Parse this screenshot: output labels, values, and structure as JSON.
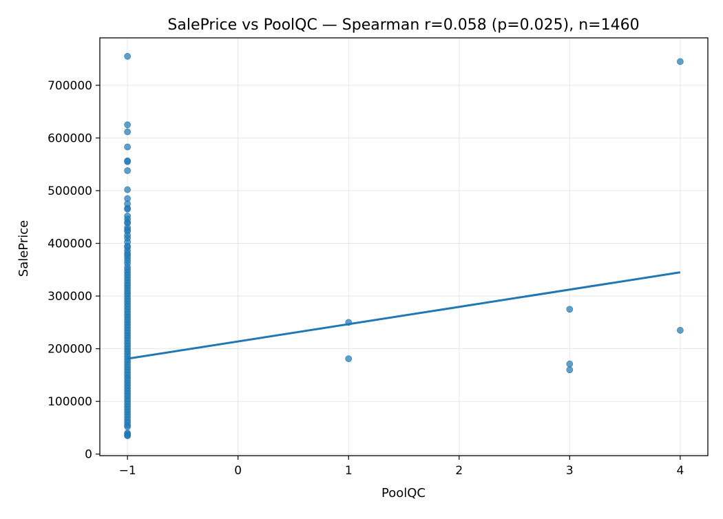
{
  "chart_data": {
    "type": "scatter",
    "title": "SalePrice vs PoolQC — Spearman r=0.058 (p=0.025), n=1460",
    "xlabel": "PoolQC",
    "ylabel": "SalePrice",
    "xlim": [
      -1.25,
      4.25
    ],
    "ylim": [
      -3000,
      790000
    ],
    "x_ticks": [
      -1,
      0,
      1,
      2,
      3,
      4
    ],
    "x_tick_labels": [
      "−1",
      "0",
      "1",
      "2",
      "3",
      "4"
    ],
    "y_ticks": [
      0,
      100000,
      200000,
      300000,
      400000,
      500000,
      600000,
      700000
    ],
    "y_tick_labels": [
      "0",
      "100000",
      "200000",
      "300000",
      "400000",
      "500000",
      "600000",
      "700000"
    ],
    "grid": true,
    "point_color": "#1f77b4",
    "line_color": "#1f77b4",
    "series": [
      {
        "type": "scatter",
        "points": [
          {
            "x": -1,
            "y": 755000
          },
          {
            "x": -1,
            "y": 625000
          },
          {
            "x": -1,
            "y": 611657
          },
          {
            "x": -1,
            "y": 582933
          },
          {
            "x": -1,
            "y": 556581
          },
          {
            "x": -1,
            "y": 555000
          },
          {
            "x": -1,
            "y": 538000
          },
          {
            "x": -1,
            "y": 501837
          },
          {
            "x": -1,
            "y": 485000
          },
          {
            "x": -1,
            "y": 475000
          },
          {
            "x": -1,
            "y": 466500
          },
          {
            "x": -1,
            "y": 465000
          },
          {
            "x": -1,
            "y": 451950
          },
          {
            "x": -1,
            "y": 446261
          },
          {
            "x": -1,
            "y": 440000
          },
          {
            "x": -1,
            "y": 438780
          },
          {
            "x": -1,
            "y": 430000
          },
          {
            "x": -1,
            "y": 426000
          },
          {
            "x": -1,
            "y": 423000
          },
          {
            "x": -1,
            "y": 415298
          },
          {
            "x": -1,
            "y": 410000
          },
          {
            "x": -1,
            "y": 402861
          },
          {
            "x": -1,
            "y": 395000
          },
          {
            "x": -1,
            "y": 392500
          },
          {
            "x": -1,
            "y": 386250
          },
          {
            "x": -1,
            "y": 381000
          },
          {
            "x": -1,
            "y": 377500
          },
          {
            "x": -1,
            "y": 372500
          },
          {
            "x": -1,
            "y": 367294
          },
          {
            "x": -1,
            "y": 361919
          },
          {
            "x": -1,
            "y": 355000
          },
          {
            "x": -1,
            "y": 350000
          },
          {
            "x": -1,
            "y": 345000
          },
          {
            "x": -1,
            "y": 340000
          },
          {
            "x": -1,
            "y": 335000
          },
          {
            "x": -1,
            "y": 330000
          },
          {
            "x": -1,
            "y": 325000
          },
          {
            "x": -1,
            "y": 320000
          },
          {
            "x": -1,
            "y": 315000
          },
          {
            "x": -1,
            "y": 310000
          },
          {
            "x": -1,
            "y": 305000
          },
          {
            "x": -1,
            "y": 300000
          },
          {
            "x": -1,
            "y": 295000
          },
          {
            "x": -1,
            "y": 290000
          },
          {
            "x": -1,
            "y": 285000
          },
          {
            "x": -1,
            "y": 280000
          },
          {
            "x": -1,
            "y": 275000
          },
          {
            "x": -1,
            "y": 270000
          },
          {
            "x": -1,
            "y": 265000
          },
          {
            "x": -1,
            "y": 260000
          },
          {
            "x": -1,
            "y": 255000
          },
          {
            "x": -1,
            "y": 250000
          },
          {
            "x": -1,
            "y": 245000
          },
          {
            "x": -1,
            "y": 240000
          },
          {
            "x": -1,
            "y": 235000
          },
          {
            "x": -1,
            "y": 230000
          },
          {
            "x": -1,
            "y": 225000
          },
          {
            "x": -1,
            "y": 220000
          },
          {
            "x": -1,
            "y": 215000
          },
          {
            "x": -1,
            "y": 210000
          },
          {
            "x": -1,
            "y": 205000
          },
          {
            "x": -1,
            "y": 200000
          },
          {
            "x": -1,
            "y": 195000
          },
          {
            "x": -1,
            "y": 190000
          },
          {
            "x": -1,
            "y": 185000
          },
          {
            "x": -1,
            "y": 180000
          },
          {
            "x": -1,
            "y": 175000
          },
          {
            "x": -1,
            "y": 170000
          },
          {
            "x": -1,
            "y": 165000
          },
          {
            "x": -1,
            "y": 160000
          },
          {
            "x": -1,
            "y": 155000
          },
          {
            "x": -1,
            "y": 150000
          },
          {
            "x": -1,
            "y": 145000
          },
          {
            "x": -1,
            "y": 140000
          },
          {
            "x": -1,
            "y": 135000
          },
          {
            "x": -1,
            "y": 130000
          },
          {
            "x": -1,
            "y": 125000
          },
          {
            "x": -1,
            "y": 120000
          },
          {
            "x": -1,
            "y": 115000
          },
          {
            "x": -1,
            "y": 110000
          },
          {
            "x": -1,
            "y": 105000
          },
          {
            "x": -1,
            "y": 100000
          },
          {
            "x": -1,
            "y": 95000
          },
          {
            "x": -1,
            "y": 90000
          },
          {
            "x": -1,
            "y": 85000
          },
          {
            "x": -1,
            "y": 80000
          },
          {
            "x": -1,
            "y": 75000
          },
          {
            "x": -1,
            "y": 70000
          },
          {
            "x": -1,
            "y": 65000
          },
          {
            "x": -1,
            "y": 60000
          },
          {
            "x": -1,
            "y": 55000
          },
          {
            "x": -1,
            "y": 52000
          },
          {
            "x": -1,
            "y": 40000
          },
          {
            "x": -1,
            "y": 37900
          },
          {
            "x": -1,
            "y": 35311
          },
          {
            "x": -1,
            "y": 34900
          },
          {
            "x": 1,
            "y": 250000
          },
          {
            "x": 1,
            "y": 181000
          },
          {
            "x": 3,
            "y": 274970
          },
          {
            "x": 3,
            "y": 171000
          },
          {
            "x": 3,
            "y": 160000
          },
          {
            "x": 4,
            "y": 745000
          },
          {
            "x": 4,
            "y": 235000
          }
        ]
      },
      {
        "type": "line",
        "points": [
          {
            "x": -1,
            "y": 181000
          },
          {
            "x": 4,
            "y": 345000
          }
        ]
      }
    ]
  }
}
